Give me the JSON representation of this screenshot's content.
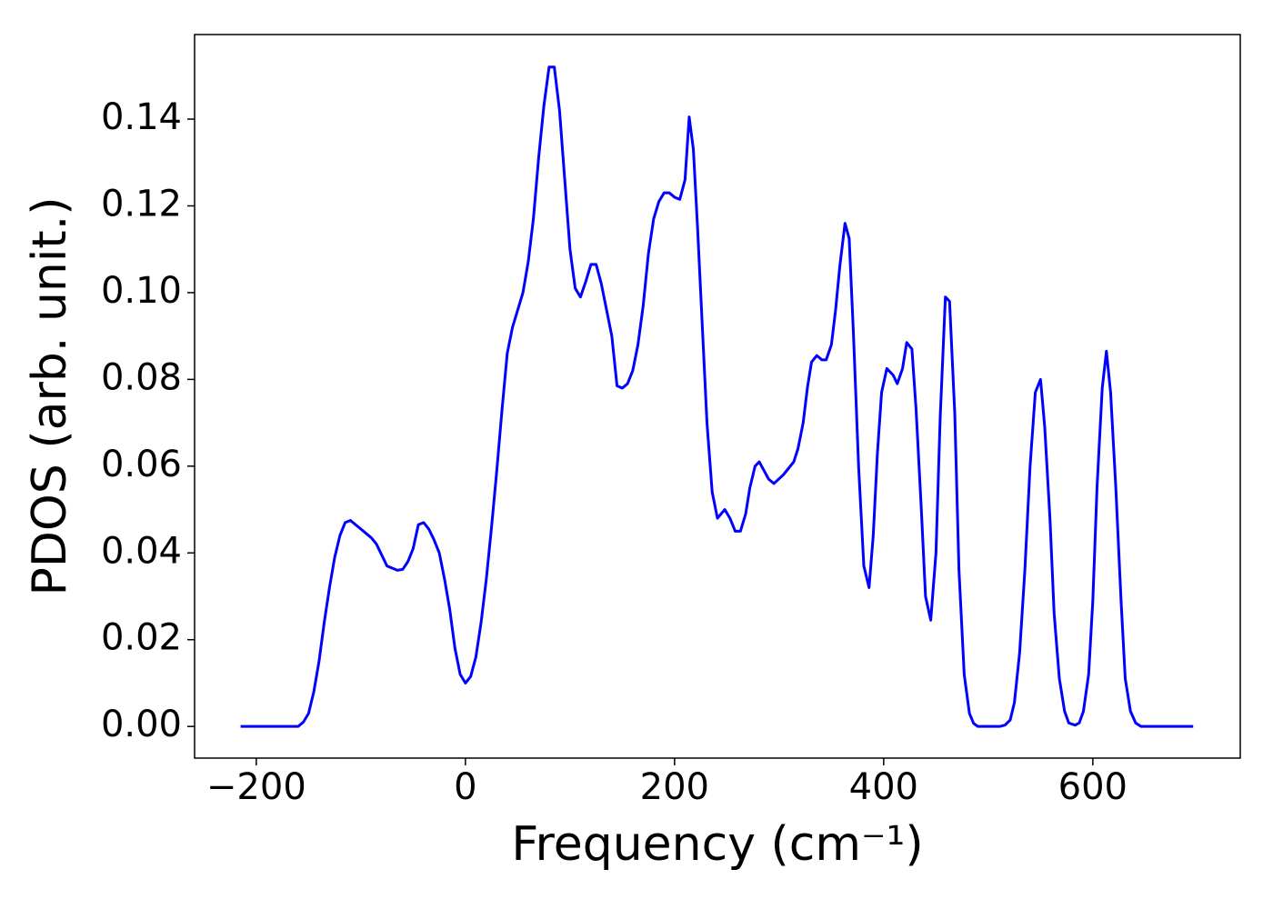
{
  "chart_data": {
    "type": "line",
    "xlabel": "Frequency (cm⁻¹)",
    "ylabel": "PDOS (arb. unit.)",
    "xlim": [
      -259,
      741
    ],
    "ylim": [
      -0.0073,
      0.1595
    ],
    "xticks": [
      {
        "value": -200,
        "label": "−200"
      },
      0,
      200,
      400,
      600
    ],
    "yticks": [
      {
        "value": 0,
        "label": "0.00"
      },
      {
        "value": 0.02,
        "label": "0.02"
      },
      {
        "value": 0.04,
        "label": "0.04"
      },
      {
        "value": 0.06,
        "label": "0.06"
      },
      {
        "value": 0.08,
        "label": "0.08"
      },
      {
        "value": 0.1,
        "label": "0.10"
      },
      {
        "value": 0.12,
        "label": "0.12"
      },
      {
        "value": 0.14,
        "label": "0.14"
      }
    ],
    "series": [
      {
        "color": "#0000ff",
        "x": [
          -215,
          -160,
          -155,
          -150,
          -145,
          -140,
          -135,
          -130,
          -125,
          -120,
          -115,
          -110,
          -105,
          -100,
          -95,
          -90,
          -85,
          -80,
          -75,
          -70,
          -65,
          -60,
          -55,
          -50,
          -45,
          -40,
          -35,
          -30,
          -25,
          -20,
          -15,
          -10,
          -5,
          0,
          5,
          10,
          15,
          20,
          25,
          30,
          35,
          40,
          45,
          50,
          55,
          60,
          65,
          70,
          75,
          80,
          85,
          90,
          95,
          100,
          105,
          110,
          115,
          120,
          125,
          130,
          135,
          140,
          145,
          150,
          155,
          160,
          165,
          170,
          175,
          180,
          185,
          190,
          195,
          200,
          205,
          210,
          214,
          218,
          222,
          231,
          236,
          241,
          248,
          253,
          258,
          263,
          268,
          272,
          277,
          281,
          290,
          295,
          304,
          314,
          318,
          323,
          327,
          331,
          336,
          341,
          345,
          350,
          354,
          358,
          363,
          367,
          371,
          376,
          381,
          386,
          390,
          394,
          398,
          403,
          409,
          413,
          418,
          422,
          427,
          431,
          436,
          440,
          445,
          450,
          454,
          459,
          463,
          468,
          472,
          477,
          482,
          486,
          490,
          511,
          516,
          521,
          525,
          530,
          535,
          540,
          545,
          550,
          554,
          559,
          563,
          568,
          573,
          577,
          583,
          587,
          591,
          596,
          600,
          604,
          609,
          613,
          617,
          622,
          627,
          631,
          636,
          641,
          646,
          696
        ],
        "values": [
          0,
          0,
          0.001,
          0.003,
          0.008,
          0.015,
          0.024,
          0.032,
          0.039,
          0.044,
          0.047,
          0.0475,
          0.0465,
          0.0455,
          0.0445,
          0.0435,
          0.042,
          0.0395,
          0.037,
          0.0365,
          0.036,
          0.0362,
          0.038,
          0.041,
          0.0465,
          0.047,
          0.0455,
          0.043,
          0.04,
          0.034,
          0.027,
          0.018,
          0.012,
          0.01,
          0.0115,
          0.016,
          0.024,
          0.034,
          0.046,
          0.059,
          0.073,
          0.086,
          0.092,
          0.096,
          0.1,
          0.107,
          0.117,
          0.131,
          0.143,
          0.152,
          0.152,
          0.142,
          0.126,
          0.11,
          0.101,
          0.099,
          0.1025,
          0.1065,
          0.1065,
          0.102,
          0.096,
          0.09,
          0.0785,
          0.078,
          0.079,
          0.082,
          0.088,
          0.097,
          0.109,
          0.117,
          0.121,
          0.123,
          0.123,
          0.122,
          0.1215,
          0.126,
          0.1405,
          0.133,
          0.115,
          0.07,
          0.054,
          0.048,
          0.05,
          0.048,
          0.045,
          0.045,
          0.049,
          0.055,
          0.06,
          0.061,
          0.057,
          0.056,
          0.058,
          0.061,
          0.064,
          0.07,
          0.078,
          0.084,
          0.0855,
          0.0845,
          0.0845,
          0.088,
          0.096,
          0.106,
          0.116,
          0.1125,
          0.091,
          0.06,
          0.037,
          0.032,
          0.044,
          0.063,
          0.077,
          0.0825,
          0.081,
          0.079,
          0.0825,
          0.0885,
          0.087,
          0.073,
          0.05,
          0.03,
          0.0245,
          0.04,
          0.071,
          0.099,
          0.098,
          0.072,
          0.036,
          0.012,
          0.003,
          0.0007,
          0,
          0,
          0.0003,
          0.0015,
          0.0055,
          0.017,
          0.036,
          0.06,
          0.077,
          0.08,
          0.069,
          0.048,
          0.026,
          0.011,
          0.0035,
          0.0008,
          0.0003,
          0.0008,
          0.0035,
          0.012,
          0.029,
          0.055,
          0.078,
          0.0865,
          0.077,
          0.055,
          0.029,
          0.011,
          0.0035,
          0.0008,
          0,
          0
        ]
      }
    ]
  }
}
